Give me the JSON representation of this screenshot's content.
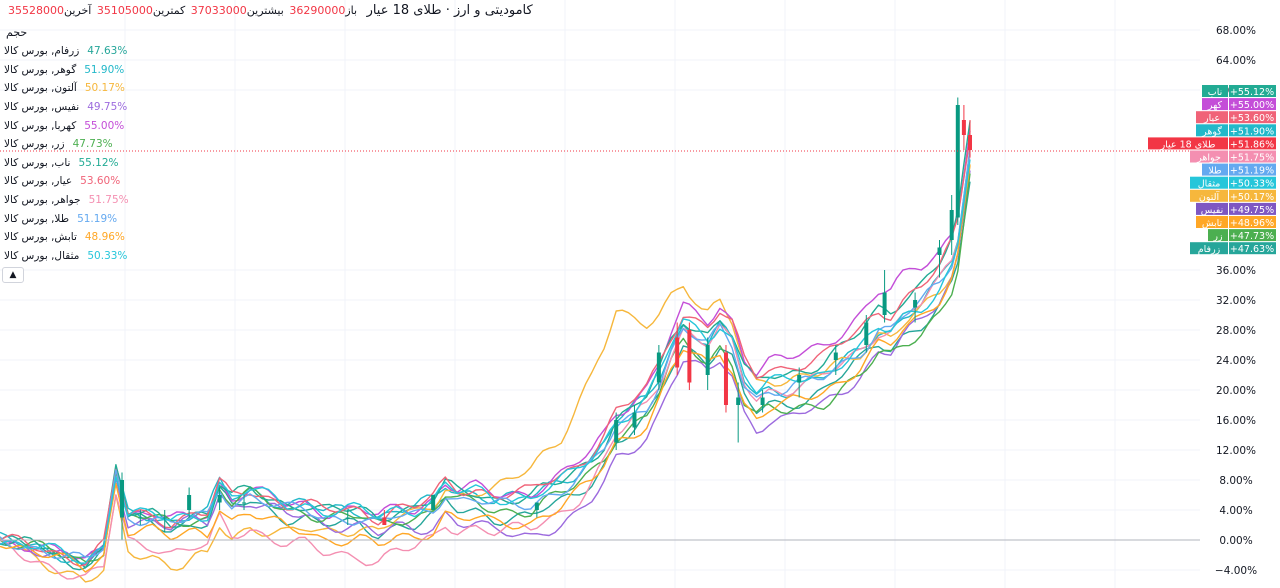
{
  "header": {
    "title": "کامودیتی و ارز · طلای 18 عیار",
    "open_label": "باز",
    "open_value": "36290000",
    "high_label": "بیشترین",
    "high_value": "37033000",
    "low_label": "کمترین",
    "low_value": "35105000",
    "close_label": "آخرین",
    "close_value": "35528000"
  },
  "volume_label": "حجم",
  "collapse_icon": "chevron-up-icon",
  "legend": [
    {
      "name": "زرفام, بورس کالا",
      "value": "47.63%",
      "color": "#26a69a"
    },
    {
      "name": "گوهر, بورس کالا",
      "value": "51.90%",
      "color": "#22b8c9"
    },
    {
      "name": "آلتون, بورس کالا",
      "value": "50.17%",
      "color": "#f6b73c"
    },
    {
      "name": "نفیس, بورس کالا",
      "value": "49.75%",
      "color": "#9c6ade"
    },
    {
      "name": "کهربا, بورس کالا",
      "value": "55.00%",
      "color": "#c44ed8"
    },
    {
      "name": "زر, بورس کالا",
      "value": "47.73%",
      "color": "#4caf50"
    },
    {
      "name": "ناب, بورس کالا",
      "value": "55.12%",
      "color": "#22ab94"
    },
    {
      "name": "عیار, بورس کالا",
      "value": "53.60%",
      "color": "#f06378"
    },
    {
      "name": "جواهر, بورس کالا",
      "value": "51.75%",
      "color": "#f48fb1"
    },
    {
      "name": "طلا, بورس کالا",
      "value": "51.19%",
      "color": "#64a9f0"
    },
    {
      "name": "تابش, بورس کالا",
      "value": "48.96%",
      "color": "#ffa726"
    },
    {
      "name": "مثقال, بورس کالا",
      "value": "50.33%",
      "color": "#26c6da"
    }
  ],
  "chart_data": {
    "type": "line",
    "title": "کامودیتی و ارز · طلای 18 عیار",
    "y_unit": "%",
    "ylim": [
      -5,
      70
    ],
    "y_ticks": [
      "68.00%",
      "64.00%",
      "60.00%",
      "36.00%",
      "32.00%",
      "28.00%",
      "24.00%",
      "20.00%",
      "16.00%",
      "12.00%",
      "8.00%",
      "4.00%",
      "0.00%",
      "−4.00%"
    ],
    "x_count": 160,
    "grid": true,
    "current_line": 51.86,
    "badges": [
      {
        "label": "ناب",
        "value": "+55.12%",
        "color": "#22ab94"
      },
      {
        "label": "کهر",
        "value": "+55.00%",
        "color": "#c44ed8"
      },
      {
        "label": "عیار",
        "value": "+53.60%",
        "color": "#f06378"
      },
      {
        "label": "گوهر",
        "value": "+51.90%",
        "color": "#22b8c9"
      },
      {
        "label": "طلای 18 عیار",
        "value": "+51.86%",
        "color": "#f23645"
      },
      {
        "label": "جواهر",
        "value": "+51.75%",
        "color": "#f48fb1"
      },
      {
        "label": "طلا",
        "value": "+51.19%",
        "color": "#64a9f0"
      },
      {
        "label": "مثقال",
        "value": "+50.33%",
        "color": "#26c6da"
      },
      {
        "label": "آلتون",
        "value": "+50.17%",
        "color": "#f6b73c"
      },
      {
        "label": "نفیس",
        "value": "+49.75%",
        "color": "#7e57c2"
      },
      {
        "label": "تابش",
        "value": "+48.96%",
        "color": "#ffa726"
      },
      {
        "label": "زر",
        "value": "+47.73%",
        "color": "#4caf50"
      },
      {
        "label": "زرفام",
        "value": "+47.63%",
        "color": "#26a69a"
      }
    ],
    "base_path": [
      [
        0,
        0
      ],
      [
        6,
        -1
      ],
      [
        10,
        -2
      ],
      [
        14,
        -3
      ],
      [
        17,
        -1
      ],
      [
        19,
        9
      ],
      [
        21,
        3
      ],
      [
        25,
        3
      ],
      [
        28,
        2
      ],
      [
        32,
        3
      ],
      [
        34,
        3
      ],
      [
        36,
        7
      ],
      [
        38,
        5
      ],
      [
        41,
        6
      ],
      [
        44,
        5
      ],
      [
        47,
        4
      ],
      [
        50,
        4
      ],
      [
        53,
        3
      ],
      [
        56,
        3
      ],
      [
        59,
        3
      ],
      [
        62,
        2
      ],
      [
        65,
        3
      ],
      [
        68,
        3
      ],
      [
        71,
        4
      ],
      [
        73,
        6
      ],
      [
        75,
        5
      ],
      [
        78,
        5
      ],
      [
        81,
        4
      ],
      [
        84,
        4
      ],
      [
        87,
        4
      ],
      [
        89,
        5
      ],
      [
        92,
        6
      ],
      [
        94,
        7
      ],
      [
        97,
        9
      ],
      [
        99,
        11
      ],
      [
        101,
        14
      ],
      [
        103,
        15
      ],
      [
        106,
        17
      ],
      [
        108,
        20
      ],
      [
        110,
        24
      ],
      [
        112,
        27
      ],
      [
        114,
        26
      ],
      [
        116,
        25
      ],
      [
        118,
        27
      ],
      [
        120,
        25
      ],
      [
        122,
        20
      ],
      [
        124,
        18
      ],
      [
        126,
        19
      ],
      [
        129,
        19
      ],
      [
        132,
        20
      ],
      [
        135,
        21
      ],
      [
        138,
        23
      ],
      [
        141,
        25
      ],
      [
        144,
        28
      ],
      [
        146,
        28
      ],
      [
        148,
        30
      ],
      [
        151,
        32
      ],
      [
        154,
        35
      ],
      [
        156,
        38
      ],
      [
        157,
        41
      ],
      [
        158,
        47
      ],
      [
        159,
        53
      ]
    ],
    "candles": [
      {
        "x": 20,
        "o": 3,
        "h": 9,
        "l": 0,
        "c": 8
      },
      {
        "x": 23,
        "o": 3,
        "h": 4,
        "l": 2,
        "c": 3
      },
      {
        "x": 27,
        "o": 3,
        "h": 4,
        "l": 1,
        "c": 3
      },
      {
        "x": 31,
        "o": 4,
        "h": 7,
        "l": 3,
        "c": 6
      },
      {
        "x": 36,
        "o": 5,
        "h": 7,
        "l": 4,
        "c": 6
      },
      {
        "x": 40,
        "o": 5,
        "h": 6,
        "l": 4,
        "c": 5
      },
      {
        "x": 57,
        "o": 3,
        "h": 4,
        "l": 2,
        "c": 3
      },
      {
        "x": 63,
        "o": 3,
        "h": 4,
        "l": 2,
        "c": 2
      },
      {
        "x": 71,
        "o": 4,
        "h": 6,
        "l": 4,
        "c": 6
      },
      {
        "x": 88,
        "o": 4,
        "h": 5,
        "l": 3,
        "c": 5
      },
      {
        "x": 101,
        "o": 13,
        "h": 17,
        "l": 12,
        "c": 16
      },
      {
        "x": 104,
        "o": 15,
        "h": 18,
        "l": 14,
        "c": 17
      },
      {
        "x": 108,
        "o": 21,
        "h": 26,
        "l": 20,
        "c": 25
      },
      {
        "x": 111,
        "o": 27,
        "h": 29,
        "l": 22,
        "c": 23
      },
      {
        "x": 113,
        "o": 28,
        "h": 29,
        "l": 20,
        "c": 21
      },
      {
        "x": 116,
        "o": 22,
        "h": 27,
        "l": 20,
        "c": 26
      },
      {
        "x": 119,
        "o": 25,
        "h": 26,
        "l": 17,
        "c": 18
      },
      {
        "x": 121,
        "o": 18,
        "h": 21,
        "l": 13,
        "c": 19
      },
      {
        "x": 125,
        "o": 18,
        "h": 20,
        "l": 17,
        "c": 19
      },
      {
        "x": 131,
        "o": 21,
        "h": 23,
        "l": 19,
        "c": 22
      },
      {
        "x": 137,
        "o": 24,
        "h": 26,
        "l": 22,
        "c": 25
      },
      {
        "x": 142,
        "o": 26,
        "h": 30,
        "l": 25,
        "c": 29
      },
      {
        "x": 145,
        "o": 30,
        "h": 36,
        "l": 29,
        "c": 33
      },
      {
        "x": 150,
        "o": 31,
        "h": 33,
        "l": 29,
        "c": 32
      },
      {
        "x": 154,
        "o": 38,
        "h": 40,
        "l": 35,
        "c": 39
      },
      {
        "x": 156,
        "o": 40,
        "h": 46,
        "l": 38,
        "c": 44
      },
      {
        "x": 157,
        "o": 43,
        "h": 59,
        "l": 42,
        "c": 58
      },
      {
        "x": 158,
        "o": 56,
        "h": 58,
        "l": 52,
        "c": 54
      },
      {
        "x": 159,
        "o": 54,
        "h": 56,
        "l": 51,
        "c": 52
      }
    ],
    "series": [
      {
        "name": "زرفام",
        "dev": [
          [
            0,
            0
          ],
          [
            50,
            -1
          ],
          [
            100,
            -1
          ],
          [
            140,
            -1
          ],
          [
            159,
            -5
          ]
        ]
      },
      {
        "name": "گوهر",
        "dev": [
          [
            0,
            0
          ],
          [
            60,
            1
          ],
          [
            100,
            2
          ],
          [
            130,
            1
          ],
          [
            159,
            -1
          ]
        ]
      },
      {
        "name": "آلتون",
        "dev": [
          [
            0,
            0
          ],
          [
            30,
            -6
          ],
          [
            60,
            -1
          ],
          [
            80,
            2
          ],
          [
            92,
            8
          ],
          [
            98,
            14
          ],
          [
            101,
            16
          ],
          [
            106,
            12
          ],
          [
            115,
            5
          ],
          [
            130,
            2
          ],
          [
            159,
            -3
          ]
        ]
      },
      {
        "name": "نفیس",
        "dev": [
          [
            0,
            0
          ],
          [
            60,
            -1
          ],
          [
            80,
            -3
          ],
          [
            95,
            -4
          ],
          [
            105,
            -3
          ],
          [
            130,
            -3
          ],
          [
            159,
            -3
          ]
        ]
      },
      {
        "name": "کهربا",
        "dev": [
          [
            0,
            0
          ],
          [
            60,
            1
          ],
          [
            100,
            3
          ],
          [
            115,
            4
          ],
          [
            130,
            5
          ],
          [
            150,
            5
          ],
          [
            159,
            2
          ]
        ]
      },
      {
        "name": "زر",
        "dev": [
          [
            0,
            0
          ],
          [
            60,
            0
          ],
          [
            100,
            0
          ],
          [
            130,
            -2
          ],
          [
            159,
            -5
          ]
        ]
      },
      {
        "name": "ناب",
        "dev": [
          [
            0,
            0
          ],
          [
            60,
            1
          ],
          [
            100,
            2
          ],
          [
            130,
            3
          ],
          [
            159,
            2
          ]
        ]
      },
      {
        "name": "عیار",
        "dev": [
          [
            0,
            0
          ],
          [
            60,
            1
          ],
          [
            100,
            3
          ],
          [
            130,
            4
          ],
          [
            159,
            1
          ]
        ]
      },
      {
        "name": "جواهر",
        "dev": [
          [
            0,
            -1
          ],
          [
            30,
            -4
          ],
          [
            60,
            -5
          ],
          [
            70,
            -4
          ],
          [
            80,
            -3
          ],
          [
            95,
            -2
          ],
          [
            105,
            1
          ],
          [
            130,
            1
          ],
          [
            159,
            -1
          ]
        ]
      },
      {
        "name": "طلا",
        "dev": [
          [
            0,
            0
          ],
          [
            60,
            0
          ],
          [
            100,
            1
          ],
          [
            130,
            1
          ],
          [
            159,
            -1
          ]
        ]
      },
      {
        "name": "تابش",
        "dev": [
          [
            0,
            0
          ],
          [
            30,
            -2
          ],
          [
            60,
            -3
          ],
          [
            80,
            -2
          ],
          [
            100,
            -1
          ],
          [
            120,
            -2
          ],
          [
            130,
            -1
          ],
          [
            159,
            -3
          ]
        ]
      },
      {
        "name": "مثقال",
        "dev": [
          [
            0,
            0
          ],
          [
            60,
            1
          ],
          [
            100,
            2
          ],
          [
            130,
            2
          ],
          [
            159,
            -2
          ]
        ]
      }
    ]
  }
}
